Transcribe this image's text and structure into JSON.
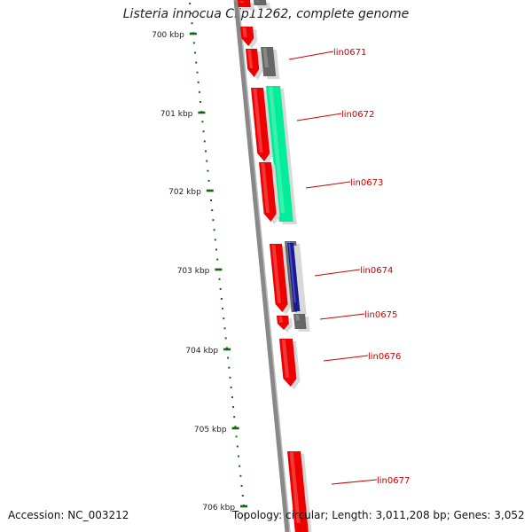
{
  "title": "Listeria innocua Clip11262, complete genome",
  "accession_text": "Accession: NC_003212",
  "summary_text": "Topology: circular; Length: 3,011,208 bp; Genes: 3,052",
  "colors": {
    "forward_cds": "#00ee99",
    "reverse_cds": "#ee0000",
    "other_feature": "#666666",
    "gene_highlight": "#1a1a99",
    "backbone": "#888888",
    "ruler_ticks": "#116611",
    "gene_labels": "#cc0000"
  },
  "ruler_labels": [
    "700 kbp",
    "701 kbp",
    "702 kbp",
    "703 kbp",
    "704 kbp",
    "705 kbp",
    "706 kbp"
  ],
  "gene_labels": [
    "lin0671",
    "lin0672",
    "lin0673",
    "lin0674",
    "lin0675",
    "lin0676",
    "lin0677"
  ]
}
